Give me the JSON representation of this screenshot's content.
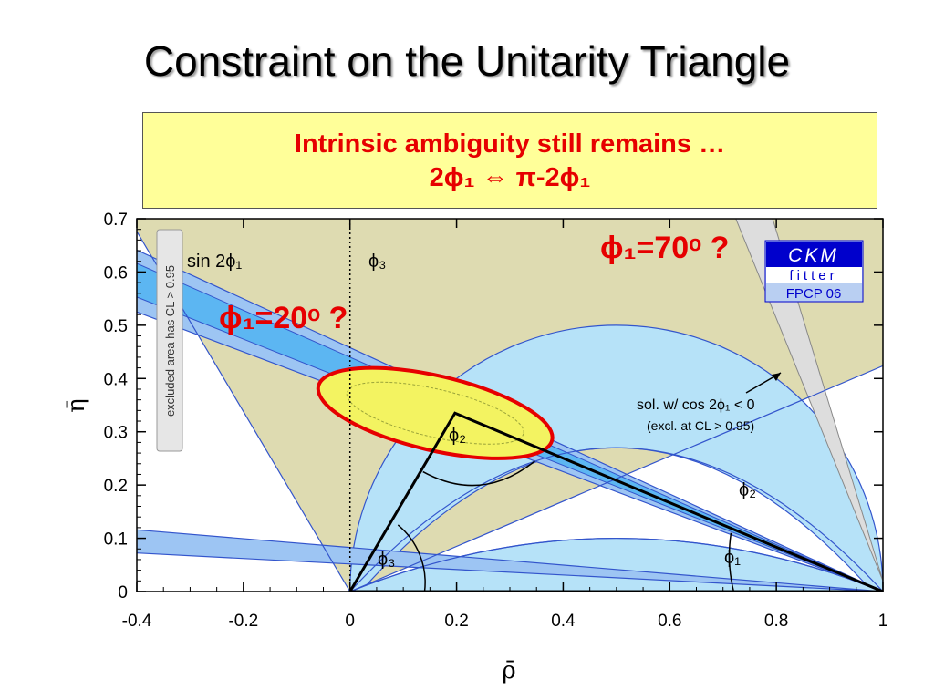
{
  "slide": {
    "title": "Constraint on the Unitarity Triangle",
    "callout_line1": "Intrinsic ambiguity still remains …",
    "callout_line2": "2ϕ₁ ⇔ π-2ϕ₁"
  },
  "chart_data": {
    "type": "scatter",
    "xlabel": "ρ̄",
    "ylabel": "η̄",
    "xlim": [
      -0.4,
      1
    ],
    "ylim": [
      0,
      0.7
    ],
    "x_ticks": [
      -0.4,
      -0.2,
      0,
      0.2,
      0.4,
      0.6,
      0.8,
      1
    ],
    "y_ticks": [
      0,
      0.1,
      0.2,
      0.3,
      0.4,
      0.5,
      0.6,
      0.7
    ],
    "x_tick_labels": [
      "-0.4",
      "-0.2",
      "0",
      "0.2",
      "0.4",
      "0.6",
      "0.8",
      "1"
    ],
    "y_tick_labels": [
      "0",
      "0.1",
      "0.2",
      "0.3",
      "0.4",
      "0.5",
      "0.6",
      "0.7"
    ],
    "apex": {
      "rho": 0.197,
      "eta": 0.335
    },
    "triangle_vertices": [
      [
        0,
        0
      ],
      [
        1,
        0
      ],
      [
        0.197,
        0.335
      ]
    ],
    "constraints": [
      "sin 2ϕ₁",
      "ϕ₃",
      "ϕ₂",
      "ϕ₁"
    ],
    "labels": {
      "sin2phi1": "sin 2ϕ₁",
      "phi3_top": "ϕ₃",
      "phi2_inside": "ϕ₂",
      "phi2_right": "ϕ₂",
      "phi1_angle": "ϕ₁",
      "phi3_angle": "ϕ₃",
      "sol_line1": "sol. w/ cos 2ϕ₁ < 0",
      "sol_line2": "(excl. at CL > 0.95)",
      "excluded_note": "excluded area has CL > 0.95"
    },
    "annotations": [
      {
        "text": "ϕ₁=20ᵒ ?",
        "color": "#e60000"
      },
      {
        "text": "ϕ₁=70ᵒ ?",
        "color": "#e60000"
      }
    ],
    "grid": false
  },
  "logo": {
    "line1": "CKM",
    "line2": "fitter",
    "line3": "FPCP 06"
  },
  "colors": {
    "phi3_fill": "#dedbb1",
    "light_blue": "#b6e2f8",
    "band_blue": "#9dc5f3",
    "band_inner": "#5cb6f2",
    "contour_fill": "#f3f361",
    "contour_edge": "#e60000",
    "annotation_red": "#e60000",
    "logo_blue": "#0000cc",
    "logo_light": "#b9cff2"
  }
}
